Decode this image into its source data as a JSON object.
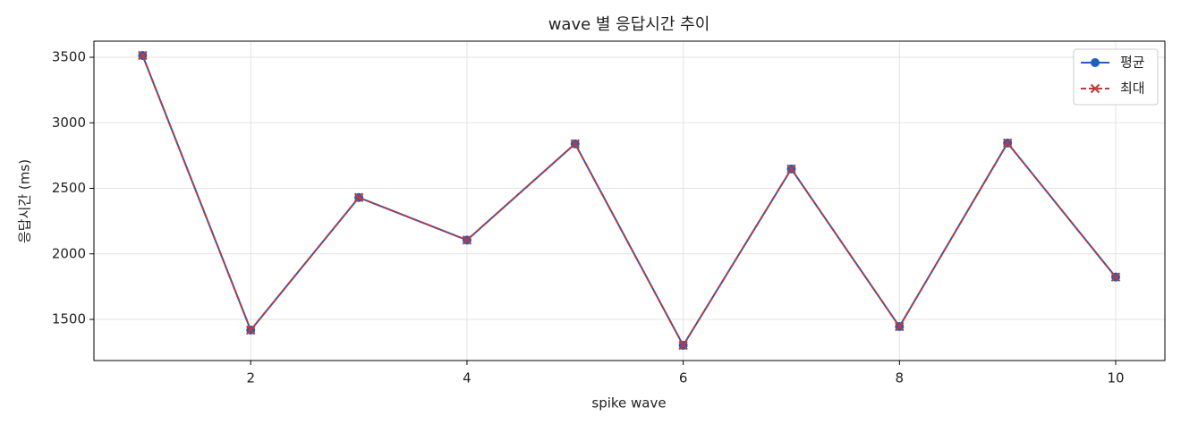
{
  "chart_data": {
    "type": "line",
    "title": "wave 별 응답시간 추이",
    "x_label": "spike wave",
    "y_label": "응답시간 (ms)",
    "x": [
      1,
      2,
      3,
      4,
      5,
      6,
      7,
      8,
      9,
      10
    ],
    "series": [
      {
        "name": "평균",
        "color": "#1f5fbf",
        "linestyle": "solid",
        "marker": "circle",
        "values": [
          3514,
          1418,
          2430,
          2105,
          2840,
          1302,
          2648,
          1445,
          2846,
          1823
        ]
      },
      {
        "name": "최대",
        "color": "#c0393b",
        "linestyle": "dashed",
        "marker": "x",
        "values": [
          3514,
          1418,
          2430,
          2105,
          2840,
          1302,
          2648,
          1445,
          2846,
          1823
        ]
      }
    ],
    "xlim": [
      0.55,
      10.455
    ],
    "ylim": [
      1186,
      3623
    ],
    "xticks": [
      2,
      4,
      6,
      8,
      10
    ],
    "yticks": [
      1500,
      2000,
      2500,
      3000,
      3500
    ],
    "grid": true,
    "legend": "upper right"
  }
}
